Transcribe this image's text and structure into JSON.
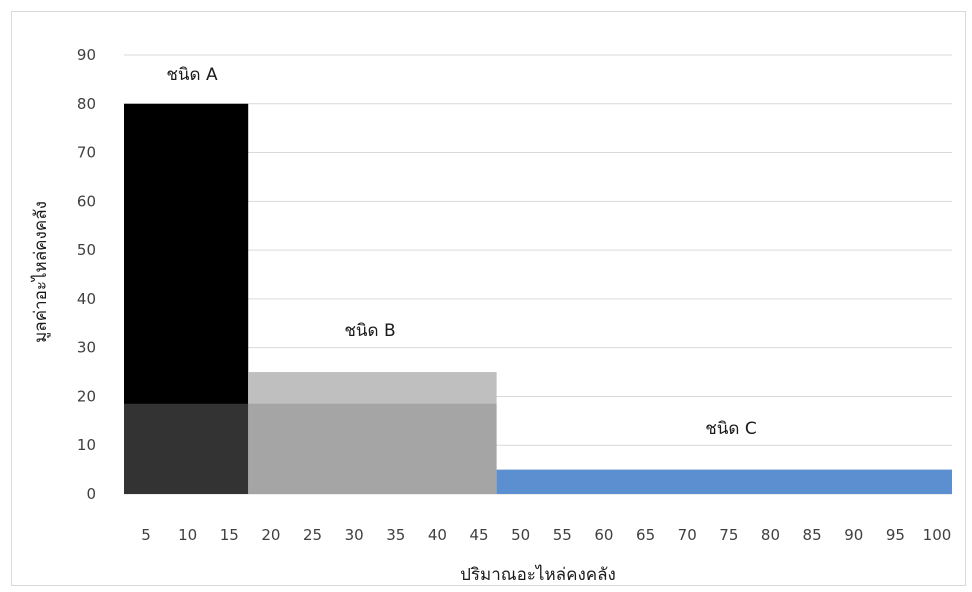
{
  "chart_data": {
    "type": "bar",
    "xlabel": "ปริมาณอะไหล่คงคลัง",
    "ylabel": "มูลค่าอะไหล่คงคลัง",
    "x_ticks": [
      "5",
      "10",
      "15",
      "20",
      "25",
      "30",
      "35",
      "40",
      "45",
      "50",
      "55",
      "60",
      "65",
      "70",
      "75",
      "80",
      "85",
      "90",
      "95",
      "100"
    ],
    "y_ticks": [
      "0",
      "10",
      "20",
      "30",
      "40",
      "50",
      "60",
      "70",
      "80",
      "90"
    ],
    "ylim": [
      0,
      90
    ],
    "grid": true,
    "legend": "none",
    "series": [
      {
        "x_start": 0,
        "x_end": 15,
        "value": 80,
        "color": "#000000",
        "label": "ชนิด A"
      },
      {
        "x_start": 15,
        "x_end": 45,
        "value": 25,
        "color": "#bfbfbf",
        "label": "ชนิด B"
      },
      {
        "x_start": 45,
        "x_end": 100,
        "value": 5,
        "color": "#5b8fcf",
        "label": "ชนิด C"
      }
    ],
    "overlay": {
      "x_start": 0,
      "x_end": 45,
      "value": 18.5,
      "color": "#7f7f7f",
      "opacity": 0.4
    }
  }
}
